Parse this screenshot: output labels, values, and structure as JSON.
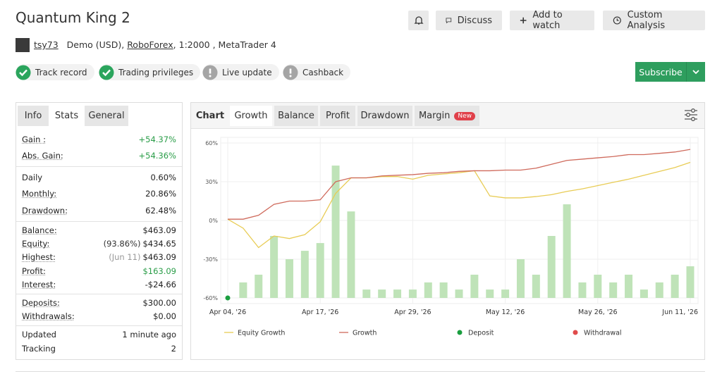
{
  "header": {
    "title": "Quantum King 2",
    "buttons": [
      "Discuss",
      "Add to watch",
      "Custom Analysis"
    ],
    "user": "tsy73",
    "account": "Demo (USD),",
    "broker": "RoboForex",
    "details": ", 1:2000 , MetaTrader 4"
  },
  "badges": [
    "Track record",
    "Trading privileges",
    "Live update",
    "Cashback"
  ],
  "subscribe": "Subscribe",
  "stats_tabs": [
    "Info",
    "Stats",
    "General"
  ],
  "stats": [
    [
      {
        "label": "Gain :",
        "value": "+54.37%"
      },
      {
        "label": "Abs. Gain:",
        "value": "+54.36%"
      }
    ],
    [
      {
        "label": "Daily",
        "value": "0.60%"
      },
      {
        "label": "Monthly:",
        "value": "20.86%"
      },
      {
        "label": "Drawdown:",
        "value": "62.48%"
      }
    ],
    [
      {
        "label": "Balance:",
        "value": "$463.09"
      },
      {
        "label": "Equity:",
        "note": "(93.86%)",
        "value": "$434.65"
      },
      {
        "label": "Highest:",
        "note": "(Jun 11)",
        "value": "$463.09"
      },
      {
        "label": "Profit:",
        "value": "$163.09"
      },
      {
        "label": "Interest:",
        "value": "-$24.66"
      }
    ],
    [
      {
        "label": "Deposits:",
        "value": "$300.00"
      },
      {
        "label": "Withdrawals:",
        "value": "$0.00"
      }
    ],
    [
      {
        "label": "Updated",
        "value": "1 minute ago"
      },
      {
        "label": "Tracking",
        "value": "2"
      }
    ]
  ],
  "chart_tabs": [
    "Chart",
    "Growth",
    "Balance",
    "Profit",
    "Drawdown",
    "Margin"
  ],
  "new_badge": "New",
  "chart_data": {
    "type": "combo",
    "categories": [
      "Apr 04, '26",
      null,
      null,
      null,
      null,
      null,
      "Apr 17, '26",
      null,
      null,
      null,
      null,
      null,
      "Apr 29, '26",
      null,
      null,
      null,
      null,
      null,
      "May 12, '26",
      null,
      null,
      null,
      null,
      null,
      "May 26, '26",
      null,
      null,
      null,
      null,
      null,
      "Jun 11, '26"
    ],
    "ylim": [
      -60,
      60
    ],
    "yticks": [
      {
        "value": 60,
        "label": "60%"
      },
      {
        "value": 30,
        "label": "30%"
      },
      {
        "value": 0,
        "label": "0%"
      },
      {
        "value": -30,
        "label": "-30%"
      },
      {
        "value": -60,
        "label": "-60%"
      }
    ],
    "grid": true,
    "bars": {
      "color": "#bfe3b8",
      "values": [
        null,
        -48,
        -42,
        -12,
        -30,
        -23.5,
        -17.5,
        42.5,
        7,
        -53.5,
        -53.5,
        -53.5,
        -53.5,
        -48,
        -48,
        -53.5,
        -42,
        -53.5,
        -53.5,
        -30,
        -42,
        -12,
        12.5,
        -48,
        -42,
        -48,
        -42,
        -53.5,
        -48,
        -42,
        -35.5
      ]
    },
    "series": [
      {
        "name": "Equity Growth",
        "kind": "line",
        "color": "#e8cc55",
        "values": [
          1,
          -6,
          -21,
          -12,
          -14,
          -11,
          -1,
          21,
          33,
          33,
          34,
          34,
          32,
          35,
          36,
          37,
          38.5,
          19,
          17.5,
          17.5,
          18.5,
          20,
          22.5,
          24.5,
          27,
          29.5,
          32,
          35,
          38,
          41,
          45
        ]
      },
      {
        "name": "Growth",
        "kind": "line",
        "color": "#cf6a5c",
        "values": [
          1,
          1,
          4,
          12.5,
          15,
          15,
          16,
          30,
          33,
          33,
          34.5,
          35,
          35.5,
          36.5,
          37,
          38,
          38.5,
          38.5,
          39,
          39,
          40.5,
          43.5,
          46.5,
          47.5,
          48.5,
          49.5,
          51,
          51,
          52,
          53,
          55
        ]
      },
      {
        "name": "Deposit",
        "kind": "marker",
        "color": "#1a9e3f",
        "values": [
          -60,
          null,
          null,
          null,
          null,
          null,
          null,
          null,
          null,
          null,
          null,
          null,
          null,
          null,
          null,
          null,
          null,
          null,
          null,
          null,
          null,
          null,
          null,
          null,
          null,
          null,
          null,
          null,
          null,
          null,
          null
        ]
      },
      {
        "name": "Withdrawal",
        "kind": "marker",
        "color": "#e04b4b",
        "values": [
          null,
          null,
          null,
          null,
          null,
          null,
          null,
          null,
          null,
          null,
          null,
          null,
          null,
          null,
          null,
          null,
          null,
          null,
          null,
          null,
          null,
          null,
          null,
          null,
          null,
          null,
          null,
          null,
          null,
          null,
          null
        ]
      }
    ]
  }
}
